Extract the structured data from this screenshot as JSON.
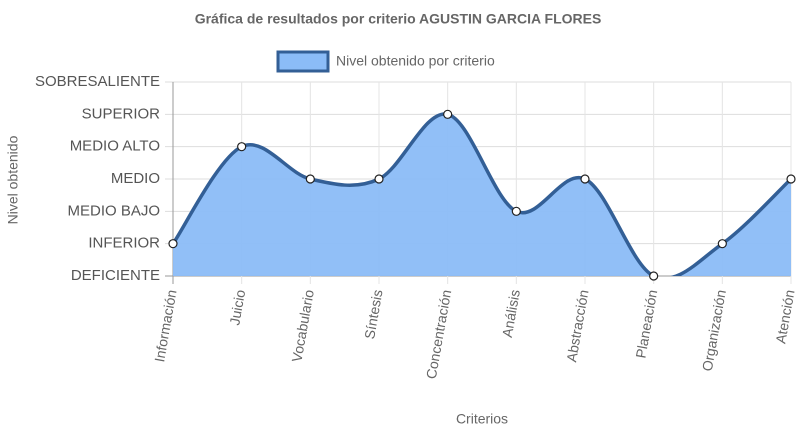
{
  "chart_data": {
    "type": "line",
    "title": "Gráfica de resultados por criterio AGUSTIN GARCIA FLORES",
    "x_label": "Criterios",
    "y_label": "Nivel obtenido",
    "categories": [
      "Información",
      "Juicio",
      "Vocabulario",
      "Síntesis",
      "Concentración",
      "Análisis",
      "Abstracción",
      "Planeación",
      "Organización",
      "Atención"
    ],
    "series": [
      {
        "name": "Nivel obtenido por criterio",
        "color": "#335f96",
        "fill": "#8bbcf7",
        "values": [
          1,
          4,
          3,
          3,
          5,
          2,
          3,
          0,
          1,
          3
        ]
      }
    ],
    "ylim": [
      0,
      6
    ],
    "yticks": [
      {
        "value": 0,
        "label": "DEFICIENTE"
      },
      {
        "value": 1,
        "label": "INFERIOR"
      },
      {
        "value": 2,
        "label": "MEDIO BAJO"
      },
      {
        "value": 3,
        "label": "MEDIO"
      },
      {
        "value": 4,
        "label": "MEDIO ALTO"
      },
      {
        "value": 5,
        "label": "SUPERIOR"
      },
      {
        "value": 6,
        "label": "SOBRESALIENTE"
      }
    ],
    "grid": true,
    "legend": "top"
  }
}
